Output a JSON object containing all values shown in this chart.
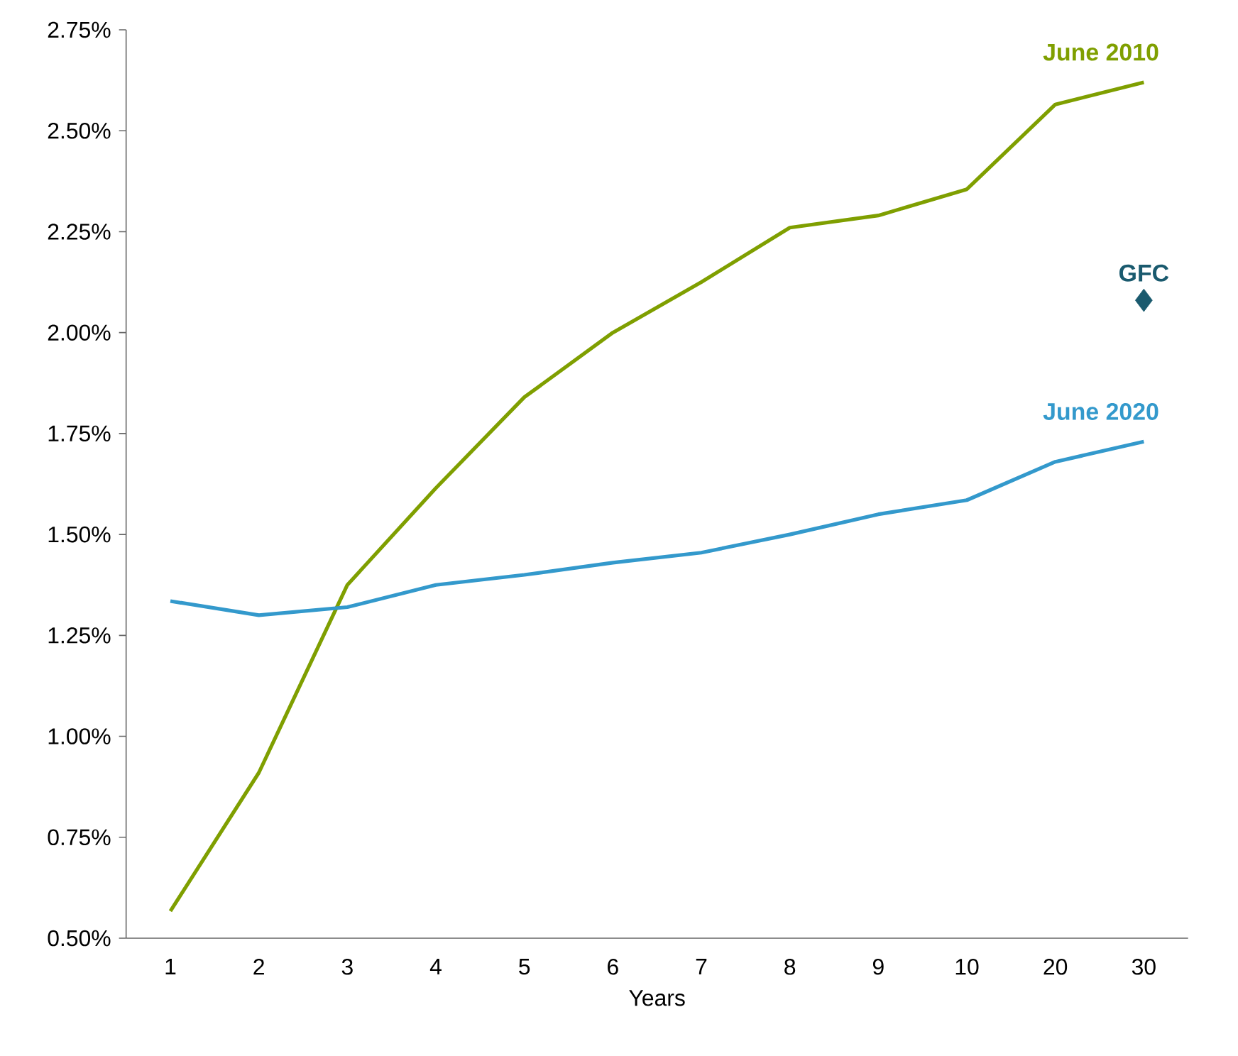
{
  "chart_data": {
    "type": "line",
    "xlabel": "Years",
    "categories": [
      "1",
      "2",
      "3",
      "4",
      "5",
      "6",
      "7",
      "8",
      "9",
      "10",
      "20",
      "30"
    ],
    "series": [
      {
        "name": "June 2010",
        "color": "#7f9f00",
        "values": [
          0.567,
          0.91,
          1.375,
          1.615,
          1.84,
          2.0,
          2.125,
          2.26,
          2.29,
          2.355,
          2.565,
          2.62
        ]
      },
      {
        "name": "June 2020",
        "color": "#3399cc",
        "values": [
          1.335,
          1.3,
          1.32,
          1.375,
          1.4,
          1.43,
          1.455,
          1.5,
          1.55,
          1.585,
          1.68,
          1.73
        ]
      },
      {
        "name": "GFC",
        "type": "scatter",
        "marker": "diamond",
        "color": "#1a5a6e",
        "x": [
          "30"
        ],
        "values": [
          2.08
        ]
      }
    ],
    "ylim": [
      0.5,
      2.75
    ],
    "yticks": [
      {
        "value": 0.5,
        "label": "0.50%"
      },
      {
        "value": 0.75,
        "label": "0.75%"
      },
      {
        "value": 1.0,
        "label": "1.00%"
      },
      {
        "value": 1.25,
        "label": "1.25%"
      },
      {
        "value": 1.5,
        "label": "1.50%"
      },
      {
        "value": 1.75,
        "label": "1.75%"
      },
      {
        "value": 2.0,
        "label": "2.00%"
      },
      {
        "value": 2.25,
        "label": "2.25%"
      },
      {
        "value": 2.5,
        "label": "2.50%"
      },
      {
        "value": 2.75,
        "label": "2.75%"
      }
    ],
    "grid": false,
    "legend": false
  }
}
